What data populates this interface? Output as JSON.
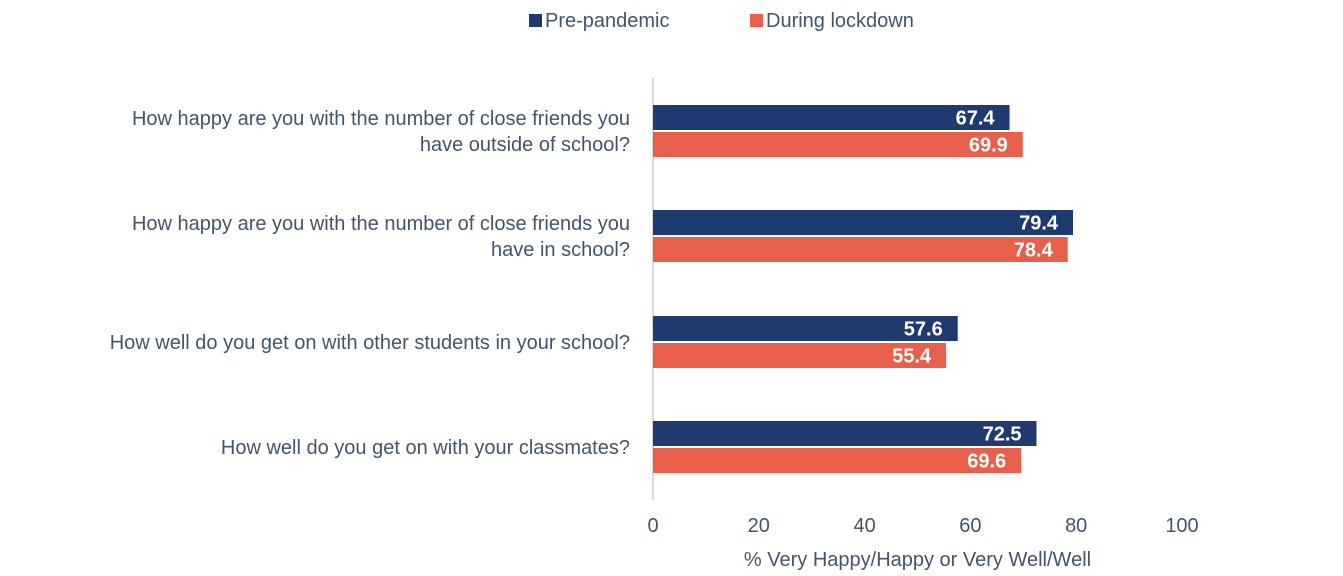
{
  "chart_data": {
    "type": "bar",
    "orientation": "horizontal",
    "categories": [
      [
        "How happy are you with the number of close friends you",
        "have outside of school?"
      ],
      [
        "How happy are you with the number of close friends you",
        "have in school?"
      ],
      [
        "How well do you get on with other students in your school?"
      ],
      [
        "How well do you get on with your classmates?"
      ]
    ],
    "series": [
      {
        "name": "Pre-pandemic",
        "color": "#1f3a6e",
        "values": [
          67.4,
          79.4,
          57.6,
          72.5
        ]
      },
      {
        "name": "During lockdown",
        "color": "#e8604c",
        "values": [
          69.9,
          78.4,
          55.4,
          69.6
        ]
      }
    ],
    "xlabel": "% Very Happy/Happy or Very Well/Well",
    "xlim": [
      0,
      100
    ],
    "xticks": [
      0,
      20,
      40,
      60,
      80,
      100
    ],
    "legend_position": "top",
    "grid": false
  }
}
